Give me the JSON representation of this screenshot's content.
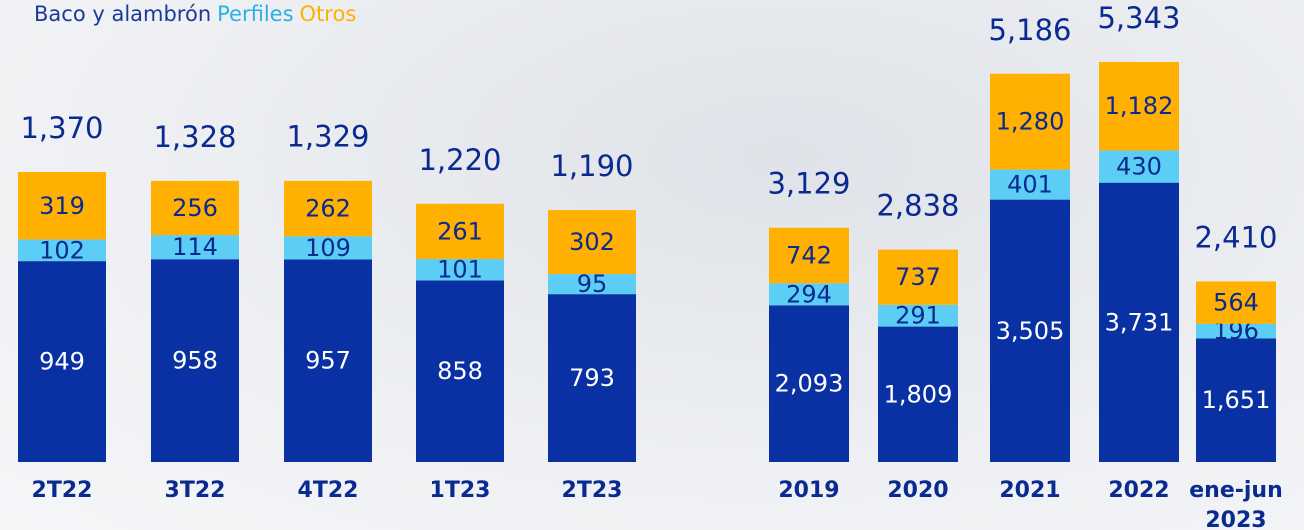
{
  "chart_data": [
    {
      "type": "stacked-bar",
      "categories": [
        "2T22",
        "3T22",
        "4T22",
        "1T23",
        "2T23"
      ],
      "series": [
        {
          "name": "Baco y alambrón",
          "color": "#0a31a3",
          "values": [
            949,
            958,
            957,
            858,
            793
          ]
        },
        {
          "name": "Perfiles",
          "color": "#5ccdf5",
          "values": [
            102,
            114,
            109,
            101,
            95
          ]
        },
        {
          "name": "Otros",
          "color": "#ffb000",
          "values": [
            319,
            256,
            262,
            261,
            302
          ]
        }
      ],
      "totals": [
        1370,
        1328,
        1329,
        1220,
        1190
      ],
      "total_labels": [
        "1,370",
        "1,328",
        "1,329",
        "1,220",
        "1,190"
      ]
    },
    {
      "type": "stacked-bar",
      "categories": [
        "2019",
        "2020",
        "2021",
        "2022",
        "ene-jun\n2023"
      ],
      "series": [
        {
          "color": "#0a31a3",
          "values": [
            2093,
            1809,
            3505,
            3731,
            1651
          ],
          "value_labels": [
            "2,093",
            "1,809",
            "3,505",
            "3,731",
            "1,651"
          ]
        },
        {
          "color": "#5ccdf5",
          "values": [
            294,
            291,
            401,
            430,
            196
          ]
        },
        {
          "color": "#ffb000",
          "values": [
            742,
            737,
            1280,
            1182,
            564
          ],
          "value_labels": [
            "742",
            "737",
            "1,280",
            "1,182",
            "564"
          ]
        }
      ],
      "totals": [
        3129,
        2838,
        5186,
        5343,
        2410
      ],
      "total_labels": [
        "3,129",
        "2,838",
        "5,186",
        "5,343",
        "2,410"
      ]
    }
  ]
}
